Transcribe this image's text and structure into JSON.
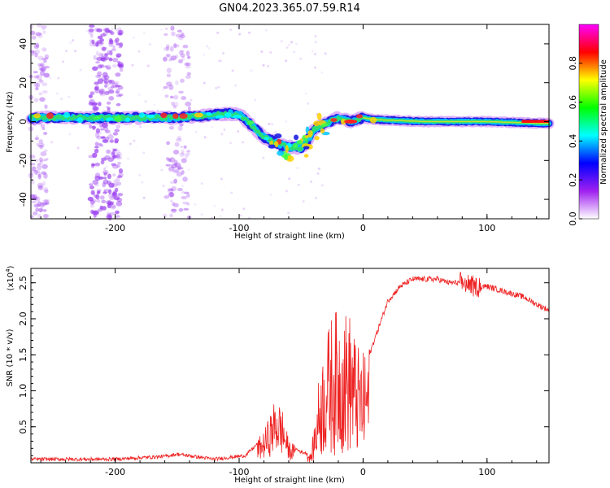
{
  "title": "GN04.2023.365.07.59.R14",
  "chart_data": [
    {
      "type": "heatmap",
      "name": "spectrogram",
      "xlabel": "Height of straight line (km)",
      "ylabel": "Frequency (Hz)",
      "xlim": [
        -268,
        150
      ],
      "ylim": [
        -50,
        50
      ],
      "xticks": [
        -200,
        -100,
        0,
        100
      ],
      "xtick_labels": [
        "-200",
        "-100",
        "0",
        "100"
      ],
      "yticks": [
        -40,
        -20,
        0,
        20,
        40
      ],
      "ytick_labels": [
        "-40",
        "-20",
        "0",
        "20",
        "40"
      ],
      "colorbar": {
        "label": "Normalized spectral amplitude",
        "range": [
          0,
          1
        ],
        "ticks": [
          0.0,
          0.2,
          0.4,
          0.6,
          0.8
        ],
        "tick_labels": [
          "0.0",
          "0.2",
          "0.4",
          "0.6",
          "0.8"
        ],
        "colormap": [
          "#ffffff",
          "#a020f0",
          "#0000ff",
          "#00ffff",
          "#00ff00",
          "#ffff00",
          "#ff0000",
          "#ff00ff"
        ]
      },
      "ridge": {
        "x": [
          -268,
          -200,
          -150,
          -110,
          -100,
          -90,
          -80,
          -70,
          -60,
          -50,
          -45,
          -40,
          -30,
          -20,
          -10,
          0,
          10,
          50,
          80,
          100,
          150
        ],
        "freq": [
          2,
          2,
          2,
          4,
          4,
          -2,
          -8,
          -11,
          -13,
          -14,
          -10,
          -4,
          -1,
          2,
          0,
          2,
          1,
          0,
          0,
          0,
          -1
        ]
      },
      "noise_bands_x": [
        [
          -220,
          -195
        ],
        [
          -160,
          -140
        ],
        [
          -268,
          -255
        ]
      ]
    },
    {
      "type": "line",
      "name": "snr",
      "xlabel": "Height of straight line (km)",
      "ylabel": "SNR (10 * v/v)",
      "scale_label": "(x10",
      "scale_exponent": "4",
      "scale_suffix": ")",
      "xlim": [
        -268,
        150
      ],
      "ylim": [
        0,
        2.7
      ],
      "xticks": [
        -200,
        -100,
        0,
        100
      ],
      "xtick_labels": [
        "-200",
        "-100",
        "0",
        "100"
      ],
      "yticks": [
        0.5,
        1.0,
        1.5,
        2.0,
        2.5
      ],
      "ytick_labels": [
        "0.5",
        "1.0",
        "1.5",
        "2.0",
        "2.5"
      ],
      "color": "#ee2222",
      "envelope": {
        "x": [
          -268,
          -200,
          -160,
          -150,
          -120,
          -95,
          -80,
          -70,
          -65,
          -60,
          -50,
          -42,
          -38,
          -35,
          -30,
          -25,
          -20,
          -15,
          -10,
          -5,
          0,
          5,
          10,
          20,
          30,
          40,
          50,
          60,
          70,
          80,
          90,
          100,
          110,
          120,
          130,
          140,
          150
        ],
        "y": [
          0.05,
          0.05,
          0.09,
          0.12,
          0.05,
          0.1,
          0.35,
          0.75,
          0.6,
          0.25,
          0.15,
          0.12,
          0.7,
          1.2,
          1.6,
          1.9,
          1.95,
          1.95,
          1.9,
          1.5,
          1.4,
          1.5,
          1.75,
          2.25,
          2.45,
          2.55,
          2.55,
          2.55,
          2.5,
          2.5,
          2.45,
          2.45,
          2.4,
          2.35,
          2.3,
          2.2,
          2.12
        ]
      }
    }
  ]
}
